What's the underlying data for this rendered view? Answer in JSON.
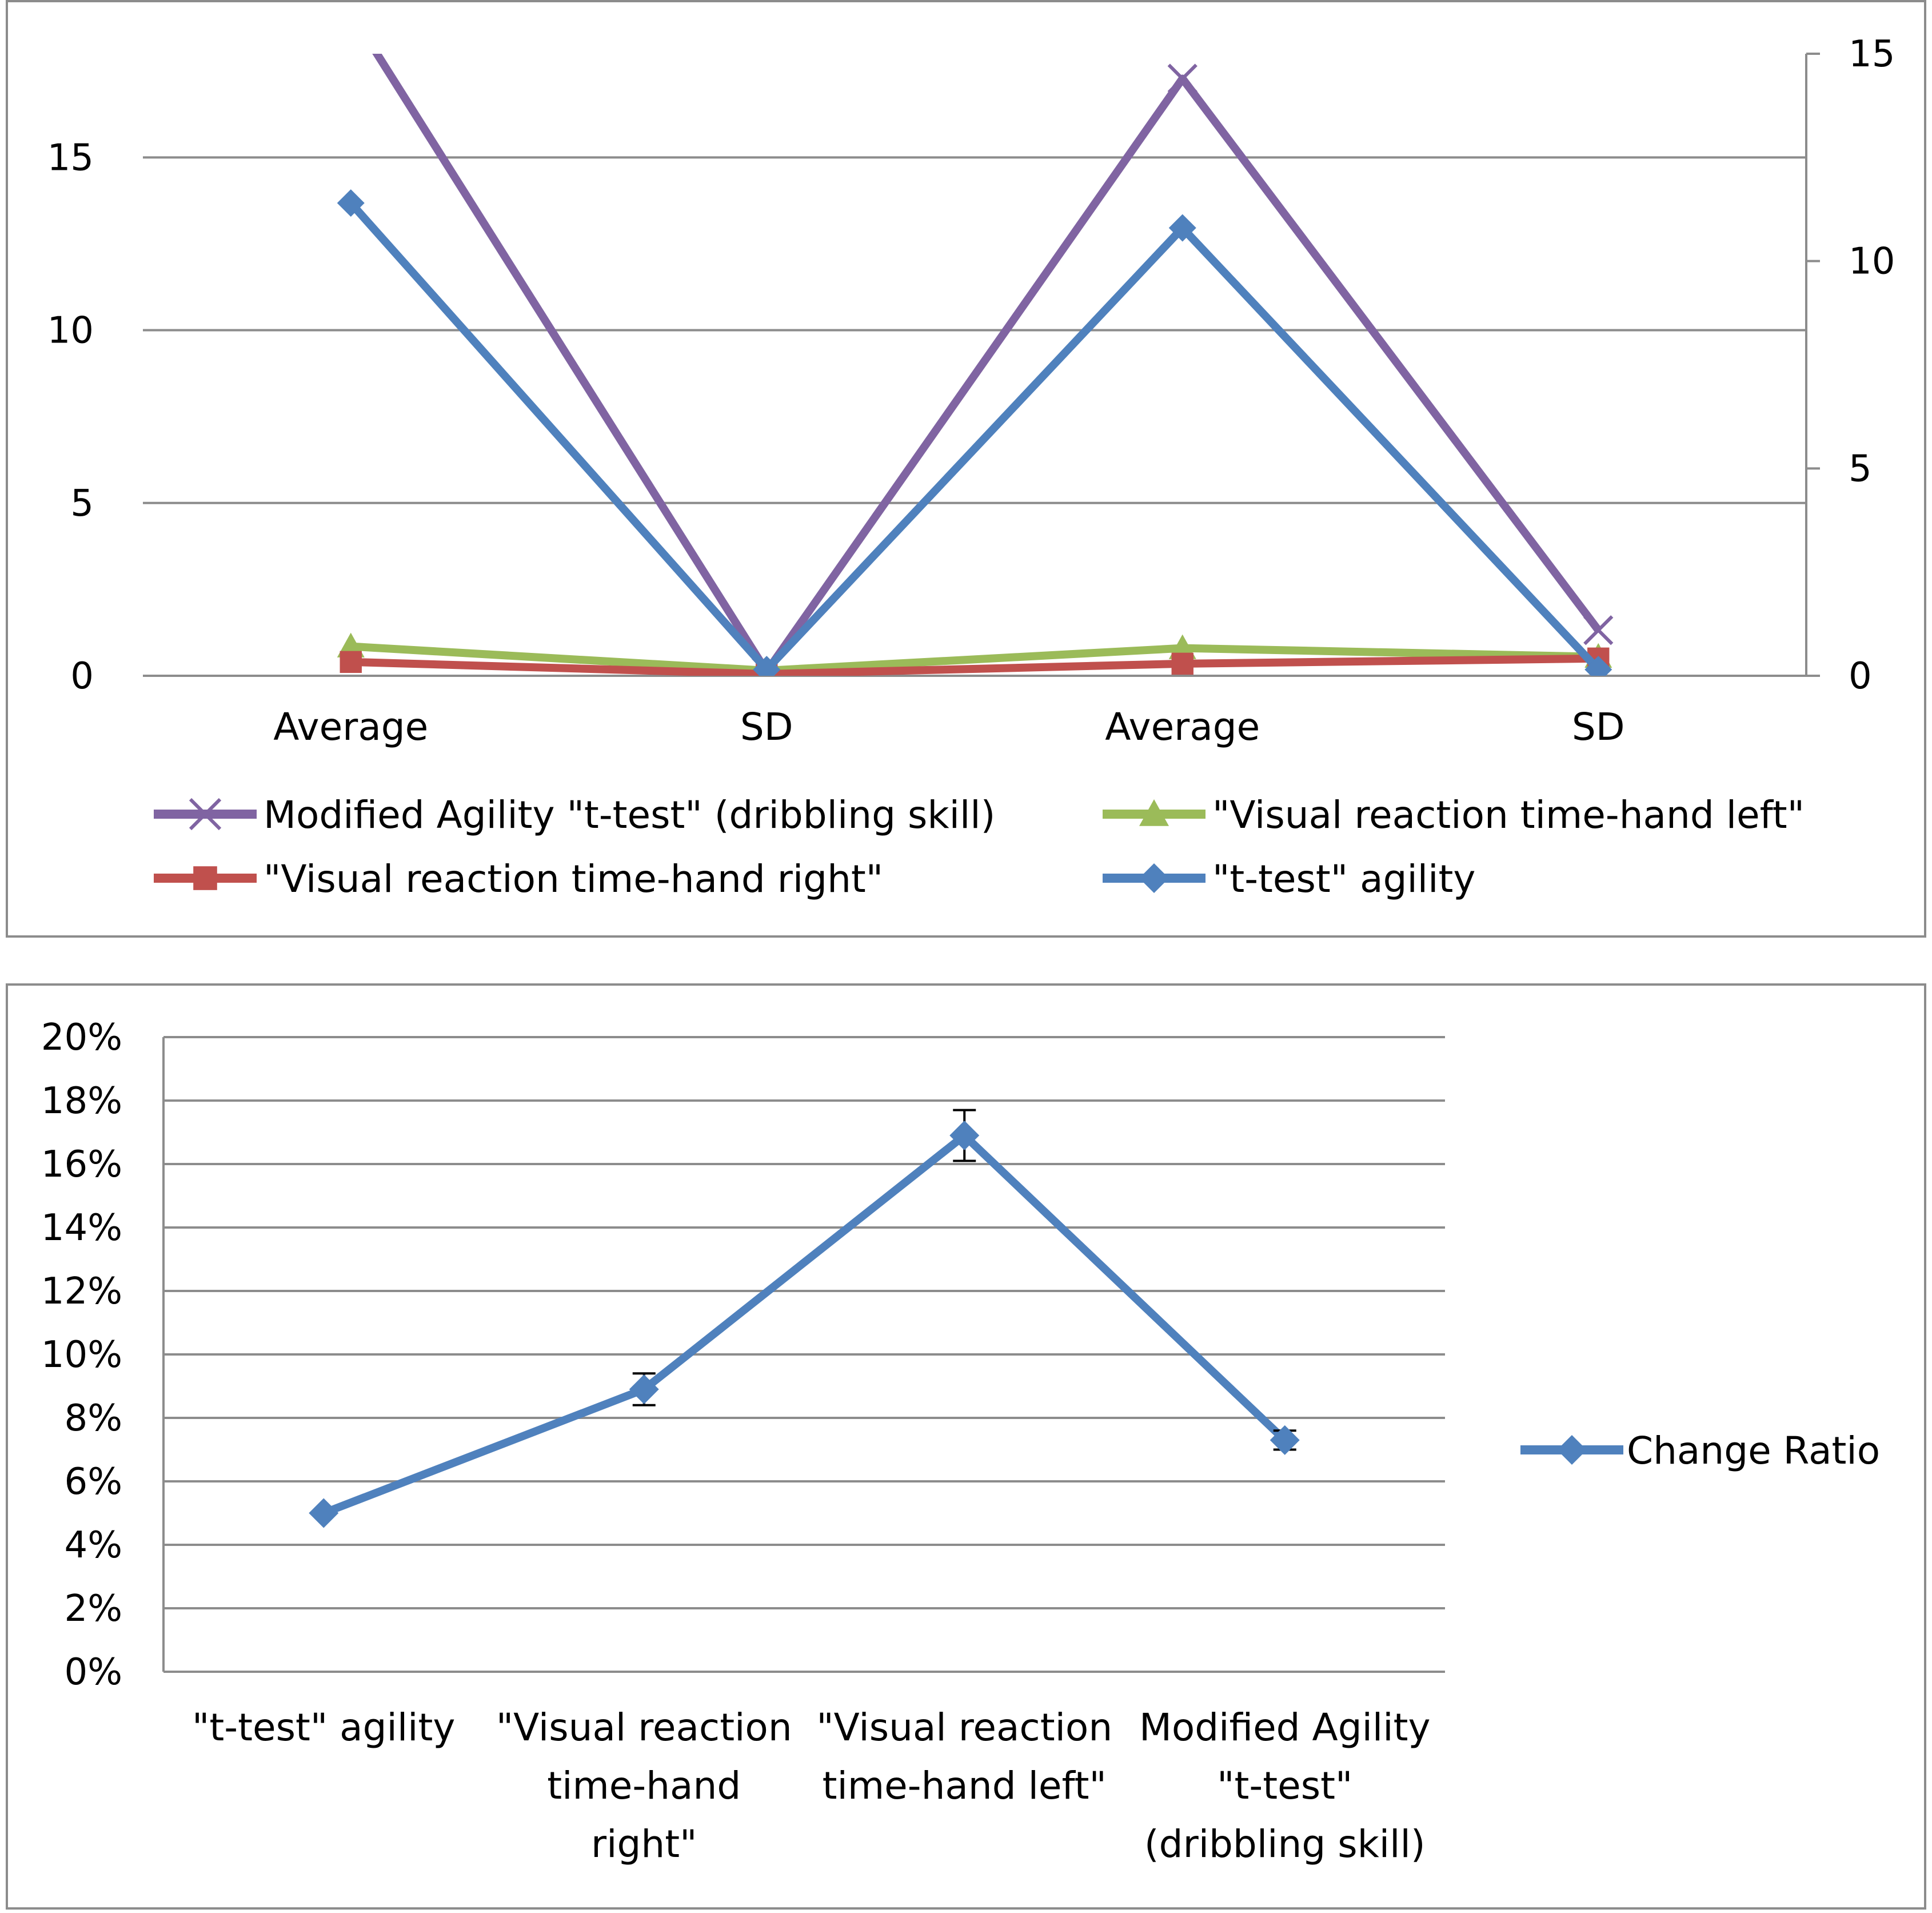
{
  "chart_data": [
    {
      "type": "line",
      "categories": [
        "Average",
        "SD",
        "Average",
        "SD"
      ],
      "title": "",
      "xlabel": "",
      "ylabel": "",
      "ylim": [
        0,
        18
      ],
      "yticks": [
        "0",
        "5",
        "10",
        "15"
      ],
      "y2lim": [
        0,
        15
      ],
      "y2ticks": [
        "0",
        "5",
        "10",
        "15"
      ],
      "grid": true,
      "legend_position": "bottom",
      "series": [
        {
          "name": "Modified Agility \"t-test\" (dribbling skill)",
          "axis": "secondary",
          "color": "#8064a2",
          "marker": "x",
          "values": [
            16.0,
            0.1,
            14.4,
            1.1
          ]
        },
        {
          "name": "\"Visual  reaction time-hand left\"",
          "axis": "primary",
          "color": "#9bbb59",
          "marker": "triangle",
          "values": [
            0.85,
            0.15,
            0.8,
            0.55
          ]
        },
        {
          "name": "\"Visual  reaction time-hand right\"",
          "axis": "primary",
          "color": "#c0504d",
          "marker": "square",
          "values": [
            0.4,
            0.05,
            0.35,
            0.5
          ]
        },
        {
          "name": "\"t-test\" agility",
          "axis": "secondary",
          "color": "#4f81bd",
          "marker": "diamond",
          "values": [
            11.4,
            0.15,
            10.8,
            0.15
          ]
        }
      ],
      "legend_order": [
        0,
        1,
        2,
        3
      ]
    },
    {
      "type": "line",
      "categories": [
        [
          "\"t-test\" agility"
        ],
        [
          "\"Visual  reaction",
          "time-hand",
          "right\""
        ],
        [
          "\"Visual  reaction",
          "time-hand left\""
        ],
        [
          "Modified Agility",
          "\"t-test\"",
          "(dribbling skill)"
        ]
      ],
      "title": "",
      "xlabel": "",
      "ylabel": "",
      "ylim": [
        0,
        0.2
      ],
      "yticks": [
        "0%",
        "2%",
        "4%",
        "6%",
        "8%",
        "10%",
        "12%",
        "14%",
        "16%",
        "18%",
        "20%"
      ],
      "grid": true,
      "legend_position": "right",
      "series": [
        {
          "name": "Change Ratio",
          "color": "#4f81bd",
          "marker": "diamond",
          "values": [
            0.05,
            0.089,
            0.169,
            0.073
          ],
          "error": [
            0.0,
            0.005,
            0.008,
            0.003
          ]
        }
      ]
    }
  ]
}
